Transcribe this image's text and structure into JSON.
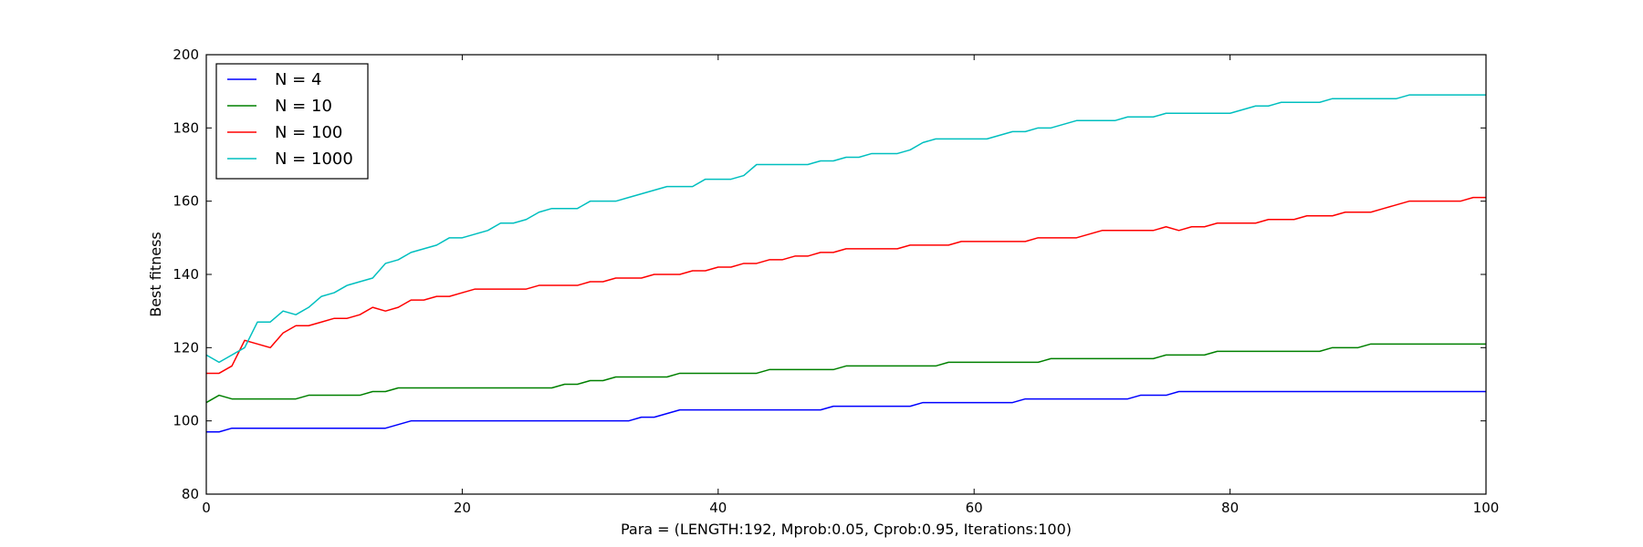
{
  "chart_data": {
    "type": "line",
    "title": "",
    "xlabel": "Para = (LENGTH:192, Mprob:0.05, Cprob:0.95, Iterations:100)",
    "ylabel": "Best fitness",
    "xlim": [
      0,
      100
    ],
    "ylim": [
      80,
      200
    ],
    "xticks": [
      0,
      20,
      40,
      60,
      80,
      100
    ],
    "yticks": [
      80,
      100,
      120,
      140,
      160,
      180,
      200
    ],
    "grid": false,
    "legend_position": "top-left",
    "x": [
      0,
      1,
      2,
      3,
      4,
      5,
      6,
      7,
      8,
      9,
      10,
      11,
      12,
      13,
      14,
      15,
      16,
      17,
      18,
      19,
      20,
      21,
      22,
      23,
      24,
      25,
      26,
      27,
      28,
      29,
      30,
      31,
      32,
      33,
      34,
      35,
      36,
      37,
      38,
      39,
      40,
      41,
      42,
      43,
      44,
      45,
      46,
      47,
      48,
      49,
      50,
      51,
      52,
      53,
      54,
      55,
      56,
      57,
      58,
      59,
      60,
      61,
      62,
      63,
      64,
      65,
      66,
      67,
      68,
      69,
      70,
      71,
      72,
      73,
      74,
      75,
      76,
      77,
      78,
      79,
      80,
      81,
      82,
      83,
      84,
      85,
      86,
      87,
      88,
      89,
      90,
      91,
      92,
      93,
      94,
      95,
      96,
      97,
      98,
      99,
      100
    ],
    "series": [
      {
        "name": "N = 4",
        "color": "#0000ff",
        "values": [
          97,
          97,
          98,
          98,
          98,
          98,
          98,
          98,
          98,
          98,
          98,
          98,
          98,
          98,
          98,
          99,
          100,
          100,
          100,
          100,
          100,
          100,
          100,
          100,
          100,
          100,
          100,
          100,
          100,
          100,
          100,
          100,
          100,
          100,
          101,
          101,
          102,
          103,
          103,
          103,
          103,
          103,
          103,
          103,
          103,
          103,
          103,
          103,
          103,
          104,
          104,
          104,
          104,
          104,
          104,
          104,
          105,
          105,
          105,
          105,
          105,
          105,
          105,
          105,
          106,
          106,
          106,
          106,
          106,
          106,
          106,
          106,
          106,
          107,
          107,
          107,
          108,
          108,
          108,
          108,
          108,
          108,
          108,
          108,
          108,
          108,
          108,
          108,
          108,
          108,
          108,
          108,
          108,
          108,
          108,
          108,
          108,
          108,
          108,
          108,
          108
        ]
      },
      {
        "name": "N = 10",
        "color": "#008000",
        "values": [
          105,
          107,
          106,
          106,
          106,
          106,
          106,
          106,
          107,
          107,
          107,
          107,
          107,
          108,
          108,
          109,
          109,
          109,
          109,
          109,
          109,
          109,
          109,
          109,
          109,
          109,
          109,
          109,
          110,
          110,
          111,
          111,
          112,
          112,
          112,
          112,
          112,
          113,
          113,
          113,
          113,
          113,
          113,
          113,
          114,
          114,
          114,
          114,
          114,
          114,
          115,
          115,
          115,
          115,
          115,
          115,
          115,
          115,
          116,
          116,
          116,
          116,
          116,
          116,
          116,
          116,
          117,
          117,
          117,
          117,
          117,
          117,
          117,
          117,
          117,
          118,
          118,
          118,
          118,
          119,
          119,
          119,
          119,
          119,
          119,
          119,
          119,
          119,
          120,
          120,
          120,
          121,
          121,
          121,
          121,
          121,
          121,
          121,
          121,
          121,
          121
        ]
      },
      {
        "name": "N = 100",
        "color": "#ff0000",
        "values": [
          113,
          113,
          115,
          122,
          121,
          120,
          124,
          126,
          126,
          127,
          128,
          128,
          129,
          131,
          130,
          131,
          133,
          133,
          134,
          134,
          135,
          136,
          136,
          136,
          136,
          136,
          137,
          137,
          137,
          137,
          138,
          138,
          139,
          139,
          139,
          140,
          140,
          140,
          141,
          141,
          142,
          142,
          143,
          143,
          144,
          144,
          145,
          145,
          146,
          146,
          147,
          147,
          147,
          147,
          147,
          148,
          148,
          148,
          148,
          149,
          149,
          149,
          149,
          149,
          149,
          150,
          150,
          150,
          150,
          151,
          152,
          152,
          152,
          152,
          152,
          153,
          152,
          153,
          153,
          154,
          154,
          154,
          154,
          155,
          155,
          155,
          156,
          156,
          156,
          157,
          157,
          157,
          158,
          159,
          160,
          160,
          160,
          160,
          160,
          161,
          161
        ]
      },
      {
        "name": "N = 1000",
        "color": "#00bfbf",
        "values": [
          118,
          116,
          118,
          120,
          127,
          127,
          130,
          129,
          131,
          134,
          135,
          137,
          138,
          139,
          143,
          144,
          146,
          147,
          148,
          150,
          150,
          151,
          152,
          154,
          154,
          155,
          157,
          158,
          158,
          158,
          160,
          160,
          160,
          161,
          162,
          163,
          164,
          164,
          164,
          166,
          166,
          166,
          167,
          170,
          170,
          170,
          170,
          170,
          171,
          171,
          172,
          172,
          173,
          173,
          173,
          174,
          176,
          177,
          177,
          177,
          177,
          177,
          178,
          179,
          179,
          180,
          180,
          181,
          182,
          182,
          182,
          182,
          183,
          183,
          183,
          184,
          184,
          184,
          184,
          184,
          184,
          185,
          186,
          186,
          187,
          187,
          187,
          187,
          188,
          188,
          188,
          188,
          188,
          188,
          189,
          189,
          189,
          189,
          189,
          189,
          189
        ]
      }
    ]
  }
}
